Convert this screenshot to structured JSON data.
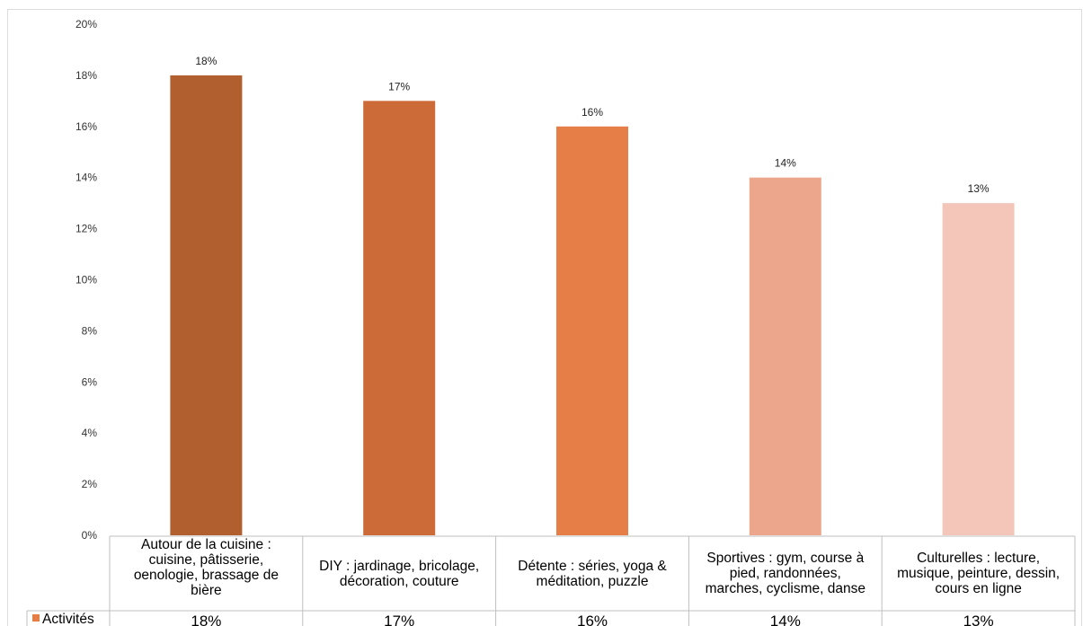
{
  "chart_data": {
    "type": "bar",
    "categories": [
      [
        "Autour de la cuisine :",
        "cuisine, pâtisserie,",
        "oenologie, brassage de",
        "bière"
      ],
      [
        "DIY : jardinage, bricolage,",
        "décoration, couture"
      ],
      [
        "Détente : séries, yoga &",
        "méditation, puzzle"
      ],
      [
        "Sportives : gym, course à",
        "pied, randonnées,",
        "marches, cyclisme, danse"
      ],
      [
        "Culturelles : lecture,",
        "musique, peinture, dessin,",
        "cours en ligne"
      ]
    ],
    "series": [
      {
        "name": "Activités",
        "values": [
          0.18,
          0.17,
          0.16,
          0.14,
          0.13
        ],
        "data_labels": [
          "18%",
          "17%",
          "16%",
          "14%",
          "13%"
        ]
      }
    ],
    "bar_colors": [
      "#b15f2f",
      "#cc6a38",
      "#e67f47",
      "#eca68c",
      "#f3c6b9"
    ],
    "legend_color": "#e67f47",
    "yticks": [
      "0%",
      "2%",
      "4%",
      "6%",
      "8%",
      "10%",
      "12%",
      "14%",
      "16%",
      "18%",
      "20%"
    ],
    "ylim": [
      0,
      0.2
    ],
    "grid": false,
    "legend_placement": "data-table"
  }
}
